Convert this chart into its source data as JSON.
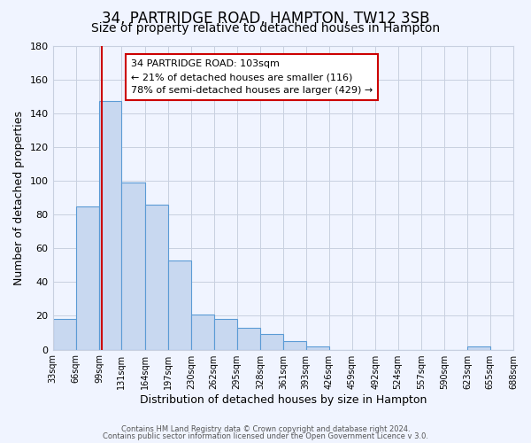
{
  "title": "34, PARTRIDGE ROAD, HAMPTON, TW12 3SB",
  "subtitle": "Size of property relative to detached houses in Hampton",
  "xlabel": "Distribution of detached houses by size in Hampton",
  "ylabel": "Number of detached properties",
  "bin_edges": [
    33,
    66,
    99,
    131,
    164,
    197,
    230,
    262,
    295,
    328,
    361,
    393,
    426,
    459,
    492,
    524,
    557,
    590,
    623,
    655,
    688
  ],
  "bin_labels": [
    "33sqm",
    "66sqm",
    "99sqm",
    "131sqm",
    "164sqm",
    "197sqm",
    "230sqm",
    "262sqm",
    "295sqm",
    "328sqm",
    "361sqm",
    "393sqm",
    "426sqm",
    "459sqm",
    "492sqm",
    "524sqm",
    "557sqm",
    "590sqm",
    "623sqm",
    "655sqm",
    "688sqm"
  ],
  "counts": [
    18,
    85,
    147,
    99,
    86,
    53,
    21,
    18,
    13,
    9,
    5,
    2,
    0,
    0,
    0,
    0,
    0,
    0,
    2,
    0
  ],
  "bar_color": "#c8d8f0",
  "bar_edge_color": "#5b9bd5",
  "property_line_x": 103,
  "property_line_color": "#cc0000",
  "annotation_text_line1": "34 PARTRIDGE ROAD: 103sqm",
  "annotation_text_line2": "← 21% of detached houses are smaller (116)",
  "annotation_text_line3": "78% of semi-detached houses are larger (429) →",
  "annotation_box_color": "#ffffff",
  "annotation_box_edge_color": "#cc0000",
  "ylim": [
    0,
    180
  ],
  "yticks": [
    0,
    20,
    40,
    60,
    80,
    100,
    120,
    140,
    160,
    180
  ],
  "background_color": "#f0f4ff",
  "grid_color": "#c8d0e0",
  "footer_line1": "Contains HM Land Registry data © Crown copyright and database right 2024.",
  "footer_line2": "Contains public sector information licensed under the Open Government Licence v 3.0.",
  "title_fontsize": 12,
  "subtitle_fontsize": 10,
  "xlabel_fontsize": 9,
  "ylabel_fontsize": 9
}
